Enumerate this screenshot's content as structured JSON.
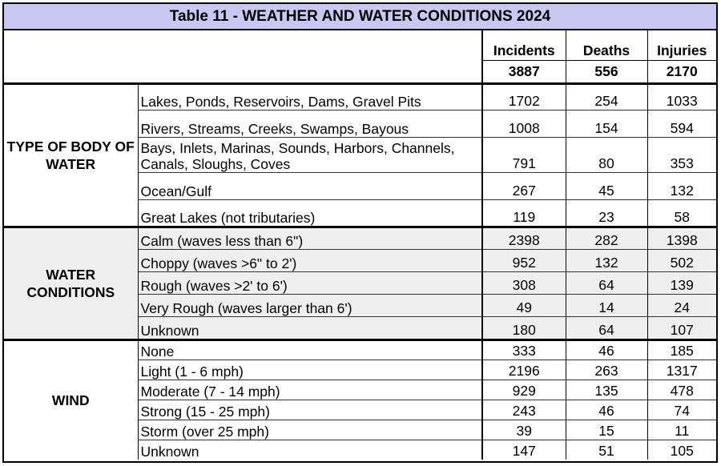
{
  "title": "Table 11 - WEATHER AND WATER CONDITIONS 2024",
  "header": {
    "columns": [
      "Incidents",
      "Deaths",
      "Injuries"
    ],
    "totals": [
      "3887",
      "556",
      "2170"
    ]
  },
  "sections": [
    {
      "category": "TYPE OF BODY OF WATER",
      "rows": [
        {
          "label": "Lakes, Ponds, Reservoirs, Dams, Gravel Pits",
          "incidents": "1702",
          "deaths": "254",
          "injuries": "1033"
        },
        {
          "label": "Rivers, Streams, Creeks, Swamps, Bayous",
          "incidents": "1008",
          "deaths": "154",
          "injuries": "594"
        },
        {
          "label": "Bays, Inlets, Marinas, Sounds, Harbors, Channels, Canals, Sloughs, Coves",
          "incidents": "791",
          "deaths": "80",
          "injuries": "353"
        },
        {
          "label": "Ocean/Gulf",
          "incidents": "267",
          "deaths": "45",
          "injuries": "132"
        },
        {
          "label": "Great Lakes (not tributaries)",
          "incidents": "119",
          "deaths": "23",
          "injuries": "58"
        }
      ]
    },
    {
      "category": "WATER CONDITIONS",
      "rows": [
        {
          "label": "Calm (waves less than 6\")",
          "incidents": "2398",
          "deaths": "282",
          "injuries": "1398"
        },
        {
          "label": "Choppy (waves >6\" to 2')",
          "incidents": "952",
          "deaths": "132",
          "injuries": "502"
        },
        {
          "label": "Rough (waves >2' to 6')",
          "incidents": "308",
          "deaths": "64",
          "injuries": "139"
        },
        {
          "label": "Very Rough (waves larger than 6')",
          "incidents": "49",
          "deaths": "14",
          "injuries": "24"
        },
        {
          "label": "Unknown",
          "incidents": "180",
          "deaths": "64",
          "injuries": "107"
        }
      ]
    },
    {
      "category": "WIND",
      "rows": [
        {
          "label": "None",
          "incidents": "333",
          "deaths": "46",
          "injuries": "185"
        },
        {
          "label": "Light (1 - 6 mph)",
          "incidents": "2196",
          "deaths": "263",
          "injuries": "1317"
        },
        {
          "label": "Moderate (7 - 14 mph)",
          "incidents": "929",
          "deaths": "135",
          "injuries": "478"
        },
        {
          "label": "Strong (15 - 25 mph)",
          "incidents": "243",
          "deaths": "46",
          "injuries": "74"
        },
        {
          "label": "Storm (over 25 mph)",
          "incidents": "39",
          "deaths": "15",
          "injuries": "11"
        },
        {
          "label": "Unknown",
          "incidents": "147",
          "deaths": "51",
          "injuries": "105"
        }
      ]
    }
  ],
  "colors": {
    "title_background": "#c8c8f2",
    "shaded_section_background": "#efefef"
  }
}
